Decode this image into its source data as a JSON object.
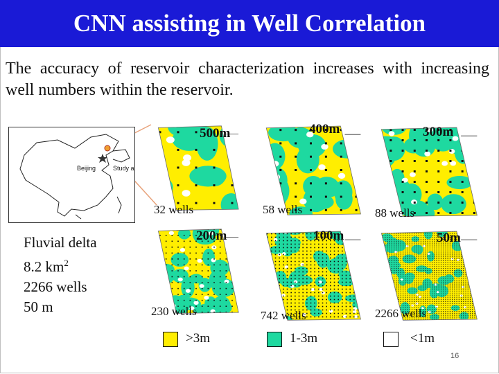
{
  "title": "CNN assisting in Well Correlation",
  "subtitle": "The accuracy of reservoir characterization increases with increasing well numbers within the reservoir.",
  "location_map": {
    "labels": [
      "Beijing",
      "Study area"
    ]
  },
  "facts": {
    "line1": "Fluvial delta",
    "line2_value": "8.2 km",
    "line2_sup": "2",
    "line3": "2266 wells",
    "line4": "50 m"
  },
  "panels": [
    {
      "spacing": "500m",
      "wells": "32 wells"
    },
    {
      "spacing": "400m",
      "wells": "58 wells"
    },
    {
      "spacing": "300m",
      "wells": "88 wells"
    },
    {
      "spacing": "200m",
      "wells": "230 wells"
    },
    {
      "spacing": "100m",
      "wells": "742 wells"
    },
    {
      "spacing": "50m",
      "wells": "2266 wells"
    }
  ],
  "legend": [
    {
      "label": ">3m",
      "color": "#ffee00"
    },
    {
      "label": "1-3m",
      "color": "#1ed9a0"
    },
    {
      "label": "<1m",
      "color": "#ffffff"
    }
  ],
  "colors": {
    "title_bg": "#1a1ad6",
    "sand_thick": "#ffee00",
    "sand_mid": "#1ed9a0",
    "sand_thin": "#ffffff",
    "well": "#111111"
  },
  "page_number": "16"
}
